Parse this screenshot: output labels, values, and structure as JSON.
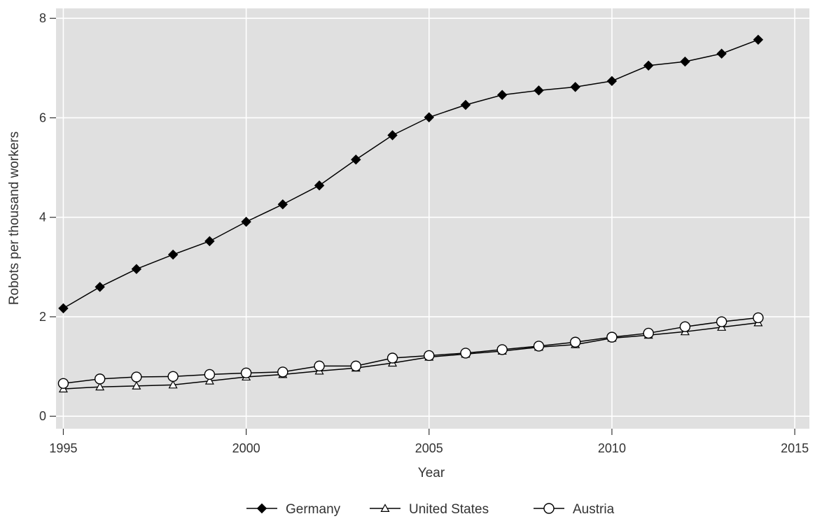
{
  "chart_data": {
    "type": "line",
    "xlabel": "Year",
    "ylabel": "Robots per thousand workers",
    "xlim": [
      1994.8,
      2015.4
    ],
    "ylim": [
      -0.25,
      8.2
    ],
    "xticks": [
      1995,
      2000,
      2005,
      2010,
      2015
    ],
    "yticks": [
      0,
      2,
      4,
      6,
      8
    ],
    "grid": true,
    "legend_position": "bottom",
    "background": "#e0e0e0",
    "x": [
      1995,
      1996,
      1997,
      1998,
      1999,
      2000,
      2001,
      2002,
      2003,
      2004,
      2005,
      2006,
      2007,
      2008,
      2009,
      2010,
      2011,
      2012,
      2013,
      2014
    ],
    "series": [
      {
        "name": "Germany",
        "marker": "diamond-filled",
        "values": [
          2.17,
          2.6,
          2.96,
          3.25,
          3.52,
          3.91,
          4.26,
          4.64,
          5.16,
          5.65,
          6.01,
          6.26,
          6.46,
          6.55,
          6.62,
          6.74,
          7.05,
          7.13,
          7.29,
          7.57
        ]
      },
      {
        "name": "United States",
        "marker": "triangle-open",
        "values": [
          0.55,
          0.59,
          0.61,
          0.63,
          0.71,
          0.79,
          0.84,
          0.91,
          0.97,
          1.07,
          1.19,
          1.25,
          1.31,
          1.39,
          1.44,
          1.57,
          1.63,
          1.7,
          1.79,
          1.88
        ]
      },
      {
        "name": "Austria",
        "marker": "circle-open",
        "values": [
          0.66,
          0.75,
          0.79,
          0.8,
          0.84,
          0.87,
          0.89,
          1.01,
          1.01,
          1.17,
          1.22,
          1.27,
          1.34,
          1.41,
          1.49,
          1.59,
          1.67,
          1.8,
          1.9,
          1.98
        ]
      }
    ]
  }
}
